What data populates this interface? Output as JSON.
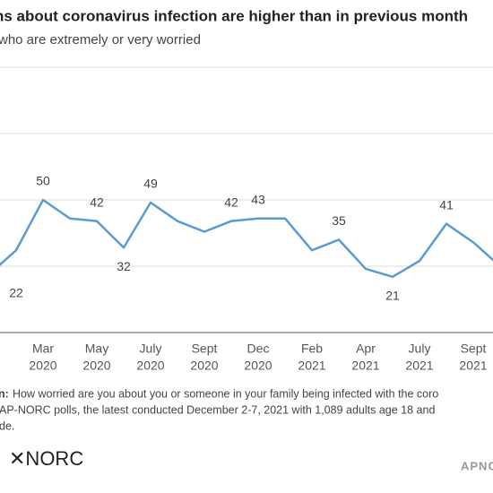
{
  "chart_data": {
    "type": "line",
    "title": "ns about coronavirus infection are higher than in previous month",
    "subtitle": "who are extremely or very worried",
    "categories": [
      null,
      null,
      [
        "Mar",
        "2020"
      ],
      null,
      [
        "May",
        "2020"
      ],
      null,
      [
        "July",
        "2020"
      ],
      null,
      [
        "Sept",
        "2020"
      ],
      null,
      [
        "Dec",
        "2020"
      ],
      null,
      [
        "Feb",
        "2021"
      ],
      null,
      [
        "Apr",
        "2021"
      ],
      null,
      [
        "July",
        "2021"
      ],
      null,
      [
        "Sept",
        "2021"
      ],
      null
    ],
    "series": [
      {
        "color": "#5b9bd5",
        "values": [
          22,
          31,
          50,
          43,
          42,
          32,
          49,
          42,
          38,
          42,
          43,
          43,
          31,
          35,
          24,
          21,
          27,
          41,
          34,
          25
        ],
        "value_labels": [
          "22",
          null,
          "50",
          null,
          "42",
          "32",
          "49",
          null,
          null,
          "42",
          "43",
          null,
          null,
          "35",
          null,
          "21",
          null,
          "41",
          null,
          null
        ]
      }
    ],
    "ylim": [
      0,
      100
    ],
    "yticks": [
      0,
      25,
      50,
      75,
      100
    ],
    "grid": true,
    "note_label": "n:",
    "note_lines": [
      "How worried are you about you or someone in your family being infected with the coro",
      "AP-NORC polls, the latest conducted December 2-7, 2021 with 1,089 adults age 18 and",
      "de."
    ],
    "logo": "✕NORC",
    "credit": "APNO"
  }
}
